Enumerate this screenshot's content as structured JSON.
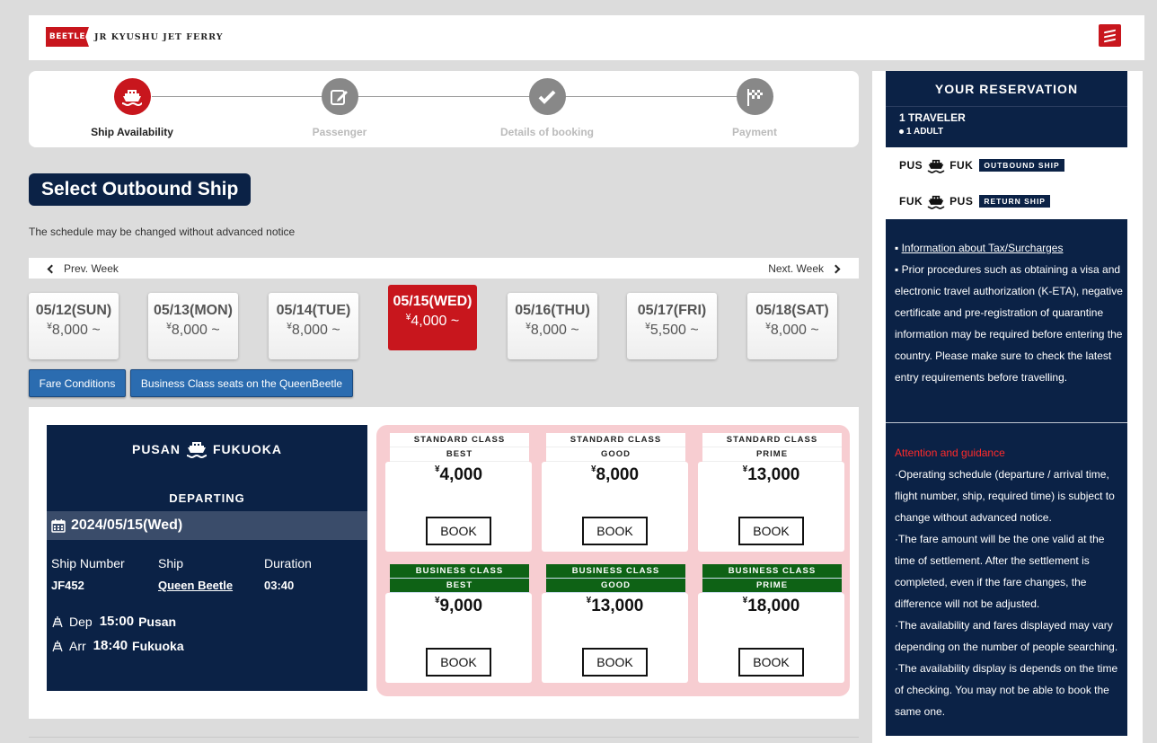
{
  "header": {
    "logo_flag": "BEETLE",
    "logo_text": "JR KYUSHU JET FERRY"
  },
  "steps": [
    {
      "label": "Ship Availability",
      "active": true
    },
    {
      "label": "Passenger",
      "active": false
    },
    {
      "label": "Details of booking",
      "active": false
    },
    {
      "label": "Payment",
      "active": false
    }
  ],
  "page_title": "Select Outbound Ship",
  "notice": "The schedule may be changed without advanced notice",
  "week_nav": {
    "prev": "Prev. Week",
    "next": "Next. Week"
  },
  "days": [
    {
      "date": "05/12(SUN)",
      "price": "8,000 ~",
      "active": false
    },
    {
      "date": "05/13(MON)",
      "price": "8,000 ~",
      "active": false
    },
    {
      "date": "05/14(TUE)",
      "price": "8,000 ~",
      "active": false
    },
    {
      "date": "05/15(WED)",
      "price": "4,000 ~",
      "active": true
    },
    {
      "date": "05/16(THU)",
      "price": "8,000 ~",
      "active": false
    },
    {
      "date": "05/17(FRI)",
      "price": "5,500 ~",
      "active": false
    },
    {
      "date": "05/18(SAT)",
      "price": "8,000 ~",
      "active": false
    }
  ],
  "currency": "¥",
  "buttons": {
    "fare_conditions": "Fare Conditions",
    "business_class": "Business Class seats on the QueenBeetle"
  },
  "voyage": {
    "from": "PUSAN",
    "to": "FUKUOKA",
    "departing_label": "DEPARTING",
    "date": "2024/05/15(Wed)",
    "ship_number_label": "Ship Number",
    "ship_number": "JF452",
    "ship_label": "Ship",
    "ship": "Queen Beetle",
    "duration_label": "Duration",
    "duration": "03:40",
    "dep_label": "Dep",
    "dep_time": "15:00",
    "dep_city": "Pusan",
    "arr_label": "Arr",
    "arr_time": "18:40",
    "arr_city": "Fukuoka"
  },
  "fares": [
    {
      "class": "STANDARD CLASS",
      "grade": "BEST",
      "price": "4,000",
      "type": "std"
    },
    {
      "class": "STANDARD CLASS",
      "grade": "GOOD",
      "price": "8,000",
      "type": "std"
    },
    {
      "class": "STANDARD CLASS",
      "grade": "PRIME",
      "price": "13,000",
      "type": "std"
    },
    {
      "class": "BUSINESS CLASS",
      "grade": "BEST",
      "price": "9,000",
      "type": "biz"
    },
    {
      "class": "BUSINESS CLASS",
      "grade": "GOOD",
      "price": "13,000",
      "type": "biz"
    },
    {
      "class": "BUSINESS CLASS",
      "grade": "PRIME",
      "price": "18,000",
      "type": "biz"
    }
  ],
  "book_label": "BOOK",
  "sidebar": {
    "title": "YOUR RESERVATION",
    "travelers": "1 TRAVELER",
    "adult": "1 ADULT",
    "outbound": {
      "from": "PUS",
      "to": "FUK",
      "tag": "OUTBOUND SHIP"
    },
    "return": {
      "from": "FUK",
      "to": "PUS",
      "tag": "RETURN SHIP"
    },
    "tax_link": "Information about Tax/Surcharges",
    "entry_note": "Prior procedures such as obtaining a visa and electronic travel authorization (K-ETA), negative certificate and pre-registration of quarantine information may be required before entering the country. Please make sure to check the latest entry requirements before travelling.",
    "guide_title": "Attention and guidance",
    "guide_items": [
      "·Operating schedule (departure / arrival time, flight number, ship, required time) is subject to change without advanced notice.",
      "·The fare amount will be the one valid at the time of settlement. After the settlement is completed, even if the fare changes, the difference will not be adjusted.",
      "·The availability and fares displayed may vary depending on the number of people searching.",
      "·The availability display is depends on the time of checking. You may not be able to book the same one."
    ]
  }
}
